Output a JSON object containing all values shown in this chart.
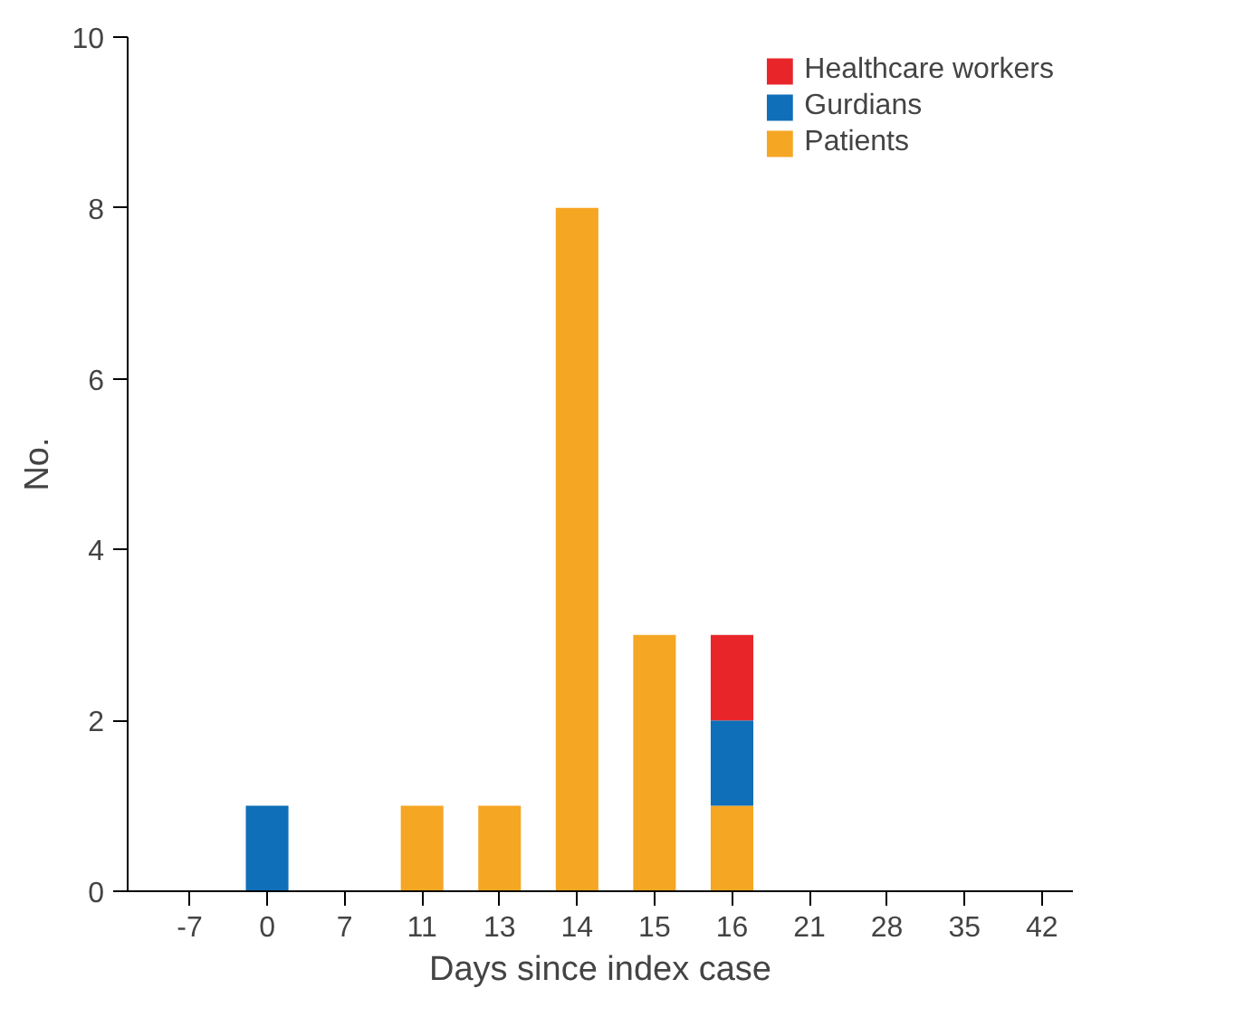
{
  "chart_data": {
    "type": "bar",
    "stacked": true,
    "xlabel": "Days since index case",
    "ylabel": "No.",
    "categories": [
      "-7",
      "0",
      "7",
      "11",
      "13",
      "14",
      "15",
      "16",
      "21",
      "28",
      "35",
      "42"
    ],
    "series": [
      {
        "name": "Patients",
        "color": "#f5a623",
        "values": [
          null,
          null,
          null,
          1,
          1,
          8,
          3,
          1,
          null,
          null,
          null,
          null
        ]
      },
      {
        "name": "Gurdians",
        "color": "#0f6fb9",
        "values": [
          null,
          1,
          null,
          null,
          null,
          null,
          null,
          1,
          null,
          null,
          null,
          null
        ]
      },
      {
        "name": "Healthcare workers",
        "color": "#e8262a",
        "values": [
          null,
          null,
          null,
          null,
          null,
          null,
          null,
          1,
          null,
          null,
          null,
          null
        ]
      }
    ],
    "ylim": [
      0,
      10
    ],
    "yticks": [
      0,
      2,
      4,
      6,
      8,
      10
    ],
    "grid": false,
    "legend": "top right"
  }
}
